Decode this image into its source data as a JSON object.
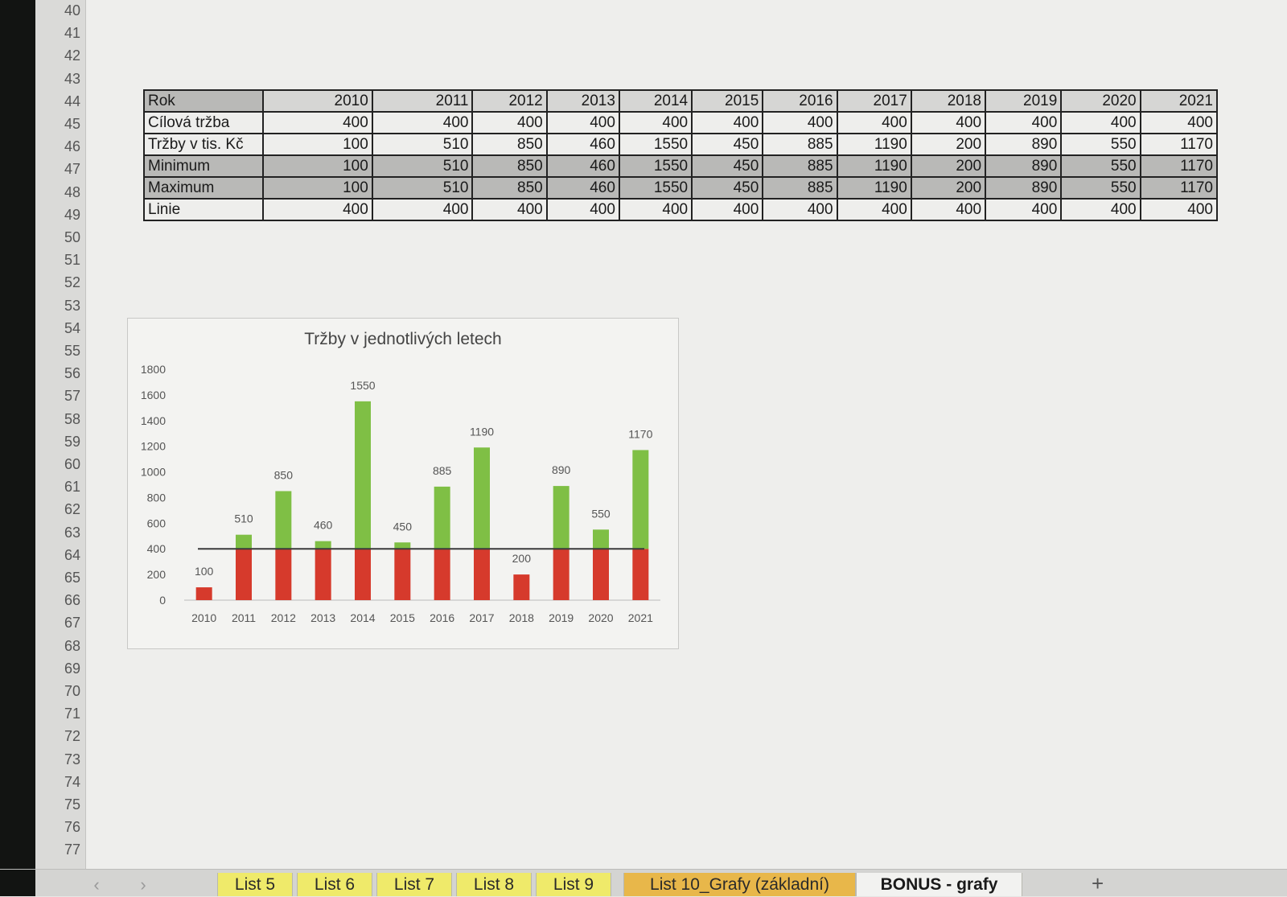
{
  "rows": [
    "40",
    "41",
    "42",
    "43",
    "44",
    "45",
    "46",
    "47",
    "48",
    "49",
    "50",
    "51",
    "52",
    "53",
    "54",
    "55",
    "56",
    "57",
    "58",
    "59",
    "60",
    "61",
    "62",
    "63",
    "64",
    "65",
    "66",
    "67",
    "68",
    "69",
    "70",
    "71",
    "72",
    "73",
    "74",
    "75",
    "76",
    "77"
  ],
  "table": {
    "header": [
      "Rok",
      "2010",
      "2011",
      "2012",
      "2013",
      "2014",
      "2015",
      "2016",
      "2017",
      "2018",
      "2019",
      "2020",
      "2021"
    ],
    "rows": [
      {
        "label": "Cílová tržba",
        "values": [
          "400",
          "400",
          "400",
          "400",
          "400",
          "400",
          "400",
          "400",
          "400",
          "400",
          "400",
          "400"
        ],
        "shaded": false
      },
      {
        "label": "Tržby v tis. Kč",
        "values": [
          "100",
          "510",
          "850",
          "460",
          "1550",
          "450",
          "885",
          "1190",
          "200",
          "890",
          "550",
          "1170"
        ],
        "shaded": false
      },
      {
        "label": "Minimum",
        "values": [
          "100",
          "510",
          "850",
          "460",
          "1550",
          "450",
          "885",
          "1190",
          "200",
          "890",
          "550",
          "1170"
        ],
        "shaded": true
      },
      {
        "label": "Maximum",
        "values": [
          "100",
          "510",
          "850",
          "460",
          "1550",
          "450",
          "885",
          "1190",
          "200",
          "890",
          "550",
          "1170"
        ],
        "shaded": true
      },
      {
        "label": "Linie",
        "values": [
          "400",
          "400",
          "400",
          "400",
          "400",
          "400",
          "400",
          "400",
          "400",
          "400",
          "400",
          "400"
        ],
        "shaded": false
      }
    ]
  },
  "chart_data": {
    "type": "bar",
    "title": "Tržby v jednotlivých letech",
    "categories": [
      "2010",
      "2011",
      "2012",
      "2013",
      "2014",
      "2015",
      "2016",
      "2017",
      "2018",
      "2019",
      "2020",
      "2021"
    ],
    "values": [
      100,
      510,
      850,
      460,
      1550,
      450,
      885,
      1190,
      200,
      890,
      550,
      1170
    ],
    "threshold": 400,
    "yticks": [
      0,
      200,
      400,
      600,
      800,
      1000,
      1200,
      1400,
      1600,
      1800
    ],
    "ylim": [
      0,
      1800
    ],
    "grid": false,
    "legend": "none",
    "colors": {
      "below": "#d63a2c",
      "above": "#7fbf45",
      "line": "#3a3a3a"
    }
  },
  "tabs": [
    {
      "label": "List 5",
      "color": "#efea6a",
      "active": false
    },
    {
      "label": "List 6",
      "color": "#efea6a",
      "active": false
    },
    {
      "label": "List 7",
      "color": "#efea6a",
      "active": false
    },
    {
      "label": "List 8",
      "color": "#efea6a",
      "active": false
    },
    {
      "label": "List 9",
      "color": "#efea6a",
      "active": false
    },
    {
      "label": "List 10_Grafy (základní)",
      "color": "#e8b74a",
      "active": false
    },
    {
      "label": "BONUS - grafy",
      "color": "#f2f2f0",
      "active": true
    }
  ],
  "nav": {
    "prev": "‹",
    "next": "›",
    "add": "+"
  }
}
